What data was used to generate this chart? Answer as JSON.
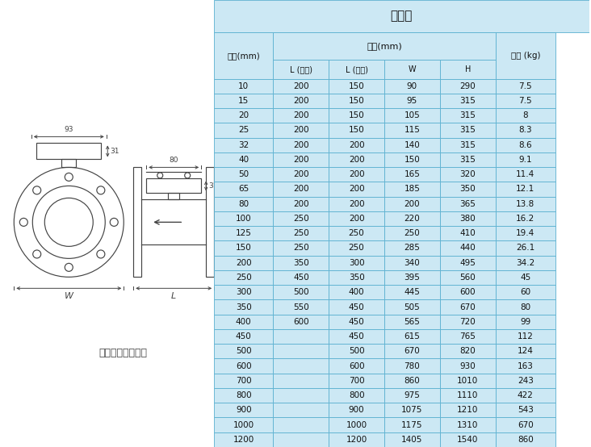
{
  "title": "分体式",
  "col0_header": "口径(mm)",
  "size_header": "尺寸(mm)",
  "weight_header": "重量 (kg)",
  "sub_cols": [
    "L (四氟)",
    "L (橡胶)",
    "W",
    "H"
  ],
  "rows": [
    [
      "10",
      "200",
      "150",
      "90",
      "290",
      "7.5"
    ],
    [
      "15",
      "200",
      "150",
      "95",
      "315",
      "7.5"
    ],
    [
      "20",
      "200",
      "150",
      "105",
      "315",
      "8"
    ],
    [
      "25",
      "200",
      "150",
      "115",
      "315",
      "8.3"
    ],
    [
      "32",
      "200",
      "200",
      "140",
      "315",
      "8.6"
    ],
    [
      "40",
      "200",
      "200",
      "150",
      "315",
      "9.1"
    ],
    [
      "50",
      "200",
      "200",
      "165",
      "320",
      "11.4"
    ],
    [
      "65",
      "200",
      "200",
      "185",
      "350",
      "12.1"
    ],
    [
      "80",
      "200",
      "200",
      "200",
      "365",
      "13.8"
    ],
    [
      "100",
      "250",
      "200",
      "220",
      "380",
      "16.2"
    ],
    [
      "125",
      "250",
      "250",
      "250",
      "410",
      "19.4"
    ],
    [
      "150",
      "250",
      "250",
      "285",
      "440",
      "26.1"
    ],
    [
      "200",
      "350",
      "300",
      "340",
      "495",
      "34.2"
    ],
    [
      "250",
      "450",
      "350",
      "395",
      "560",
      "45"
    ],
    [
      "300",
      "500",
      "400",
      "445",
      "600",
      "60"
    ],
    [
      "350",
      "550",
      "450",
      "505",
      "670",
      "80"
    ],
    [
      "400",
      "600",
      "450",
      "565",
      "720",
      "99"
    ],
    [
      "450",
      "",
      "450",
      "615",
      "765",
      "112"
    ],
    [
      "500",
      "",
      "500",
      "670",
      "820",
      "124"
    ],
    [
      "600",
      "",
      "600",
      "780",
      "930",
      "163"
    ],
    [
      "700",
      "",
      "700",
      "860",
      "1010",
      "243"
    ],
    [
      "800",
      "",
      "800",
      "975",
      "1110",
      "422"
    ],
    [
      "900",
      "",
      "900",
      "1075",
      "1210",
      "543"
    ],
    [
      "1000",
      "",
      "1000",
      "1175",
      "1310",
      "670"
    ],
    [
      "1200",
      "",
      "1200",
      "1405",
      "1540",
      "860"
    ]
  ],
  "table_bg": "#cce8f4",
  "border_color": "#5ab0d0",
  "text_color": "#111111",
  "diagram_label": "法兰形（分体型）",
  "fig_bg": "#ffffff"
}
